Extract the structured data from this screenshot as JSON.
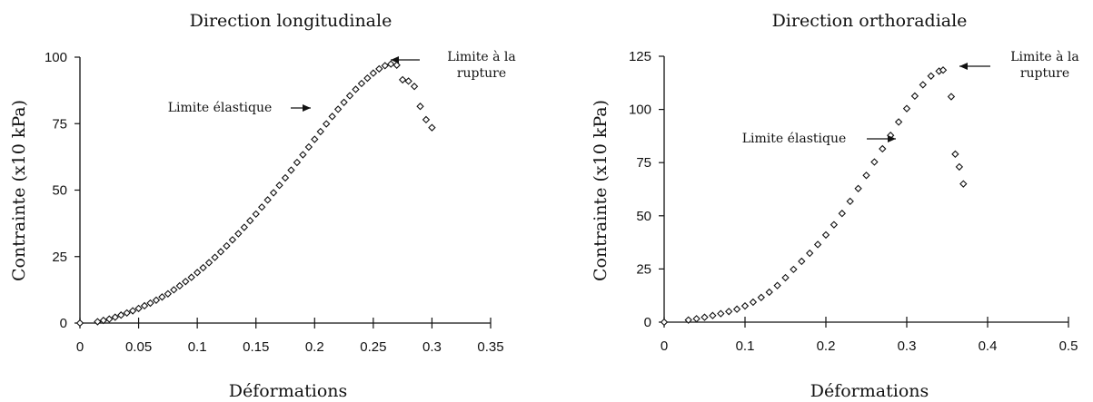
{
  "chart_data": [
    {
      "type": "scatter",
      "title": "Direction longitudinale",
      "xlabel": "Déformations",
      "ylabel": "Contrainte (x10 kPa)",
      "xlim": [
        0,
        0.35
      ],
      "ylim": [
        0,
        100
      ],
      "xticks": [
        "0",
        "0.05",
        "0.1",
        "0.15",
        "0.2",
        "0.25",
        "0.3",
        "0.35"
      ],
      "yticks": [
        "0",
        "25",
        "50",
        "75",
        "100"
      ],
      "grid": false,
      "annotations": [
        {
          "text": "Limite élastique",
          "lines": [
            "Limite élastique"
          ],
          "target": [
            0.22,
            79
          ]
        },
        {
          "text": "Limite à la rupture",
          "lines": [
            "Limite à la",
            "rupture"
          ],
          "target": [
            0.27,
            97
          ]
        }
      ],
      "series": [
        {
          "x": [
            0,
            0.015,
            0.02,
            0.025,
            0.03,
            0.035,
            0.04,
            0.045,
            0.05,
            0.055,
            0.06,
            0.065,
            0.07,
            0.075,
            0.08,
            0.085,
            0.09,
            0.095,
            0.1,
            0.105,
            0.11,
            0.115,
            0.12,
            0.125,
            0.13,
            0.135,
            0.14,
            0.145,
            0.15,
            0.155,
            0.16,
            0.165,
            0.17,
            0.175,
            0.18,
            0.185,
            0.19,
            0.195,
            0.2,
            0.205,
            0.21,
            0.215,
            0.22,
            0.225,
            0.23,
            0.235,
            0.24,
            0.245,
            0.25,
            0.255,
            0.26,
            0.265,
            0.27,
            0.275,
            0.28,
            0.285,
            0.29,
            0.295,
            0.3
          ],
          "y": [
            0,
            0.5,
            1,
            1.5,
            2.2,
            3,
            3.8,
            4.6,
            5.5,
            6.5,
            7.5,
            8.6,
            9.8,
            11,
            12.5,
            14,
            15.6,
            17.2,
            19,
            20.8,
            22.7,
            24.7,
            26.8,
            29,
            31.3,
            33.6,
            36,
            38.5,
            41,
            43.6,
            46.3,
            49,
            51.8,
            54.6,
            57.5,
            60.4,
            63.3,
            66.2,
            69.1,
            72,
            74.9,
            77.7,
            80.4,
            83,
            85.5,
            87.9,
            90.1,
            92.1,
            94,
            95.6,
            96.8,
            97.4,
            97,
            91.5,
            91,
            89,
            81.5,
            76.5,
            73.5
          ]
        }
      ]
    },
    {
      "type": "scatter",
      "title": "Direction orthoradiale",
      "xlabel": "Déformations",
      "ylabel": "Contrainte (x10 kPa)",
      "xlim": [
        0,
        0.5
      ],
      "ylim": [
        0,
        125
      ],
      "xticks": [
        "0",
        "0.1",
        "0.2",
        "0.3",
        "0.4",
        "0.5"
      ],
      "yticks": [
        "0",
        "25",
        "50",
        "75",
        "100",
        "125"
      ],
      "grid": false,
      "annotations": [
        {
          "text": "Limite élastique",
          "lines": [
            "Limite élastique"
          ],
          "target": [
            0.29,
            99
          ]
        },
        {
          "text": "Limite à la rupture",
          "lines": [
            "Limite à la",
            "rupture"
          ],
          "target": [
            0.35,
            118
          ]
        }
      ],
      "series": [
        {
          "x": [
            0,
            0.03,
            0.04,
            0.05,
            0.06,
            0.07,
            0.08,
            0.09,
            0.1,
            0.11,
            0.12,
            0.13,
            0.14,
            0.15,
            0.16,
            0.17,
            0.18,
            0.19,
            0.2,
            0.21,
            0.22,
            0.23,
            0.24,
            0.25,
            0.26,
            0.27,
            0.28,
            0.29,
            0.3,
            0.31,
            0.32,
            0.33,
            0.34,
            0.345,
            0.355,
            0.36,
            0.365,
            0.37
          ],
          "y": [
            0,
            1,
            1.6,
            2.3,
            3.1,
            4,
            5,
            6.1,
            7.6,
            9.4,
            11.6,
            14.1,
            17.2,
            20.9,
            24.8,
            28.6,
            32.4,
            36.5,
            41,
            45.8,
            51.1,
            56.8,
            62.8,
            69,
            75.3,
            81.5,
            87.8,
            94.1,
            100.4,
            106.3,
            111.6,
            115.7,
            118,
            118.5,
            106,
            79,
            73,
            65
          ]
        }
      ]
    }
  ]
}
